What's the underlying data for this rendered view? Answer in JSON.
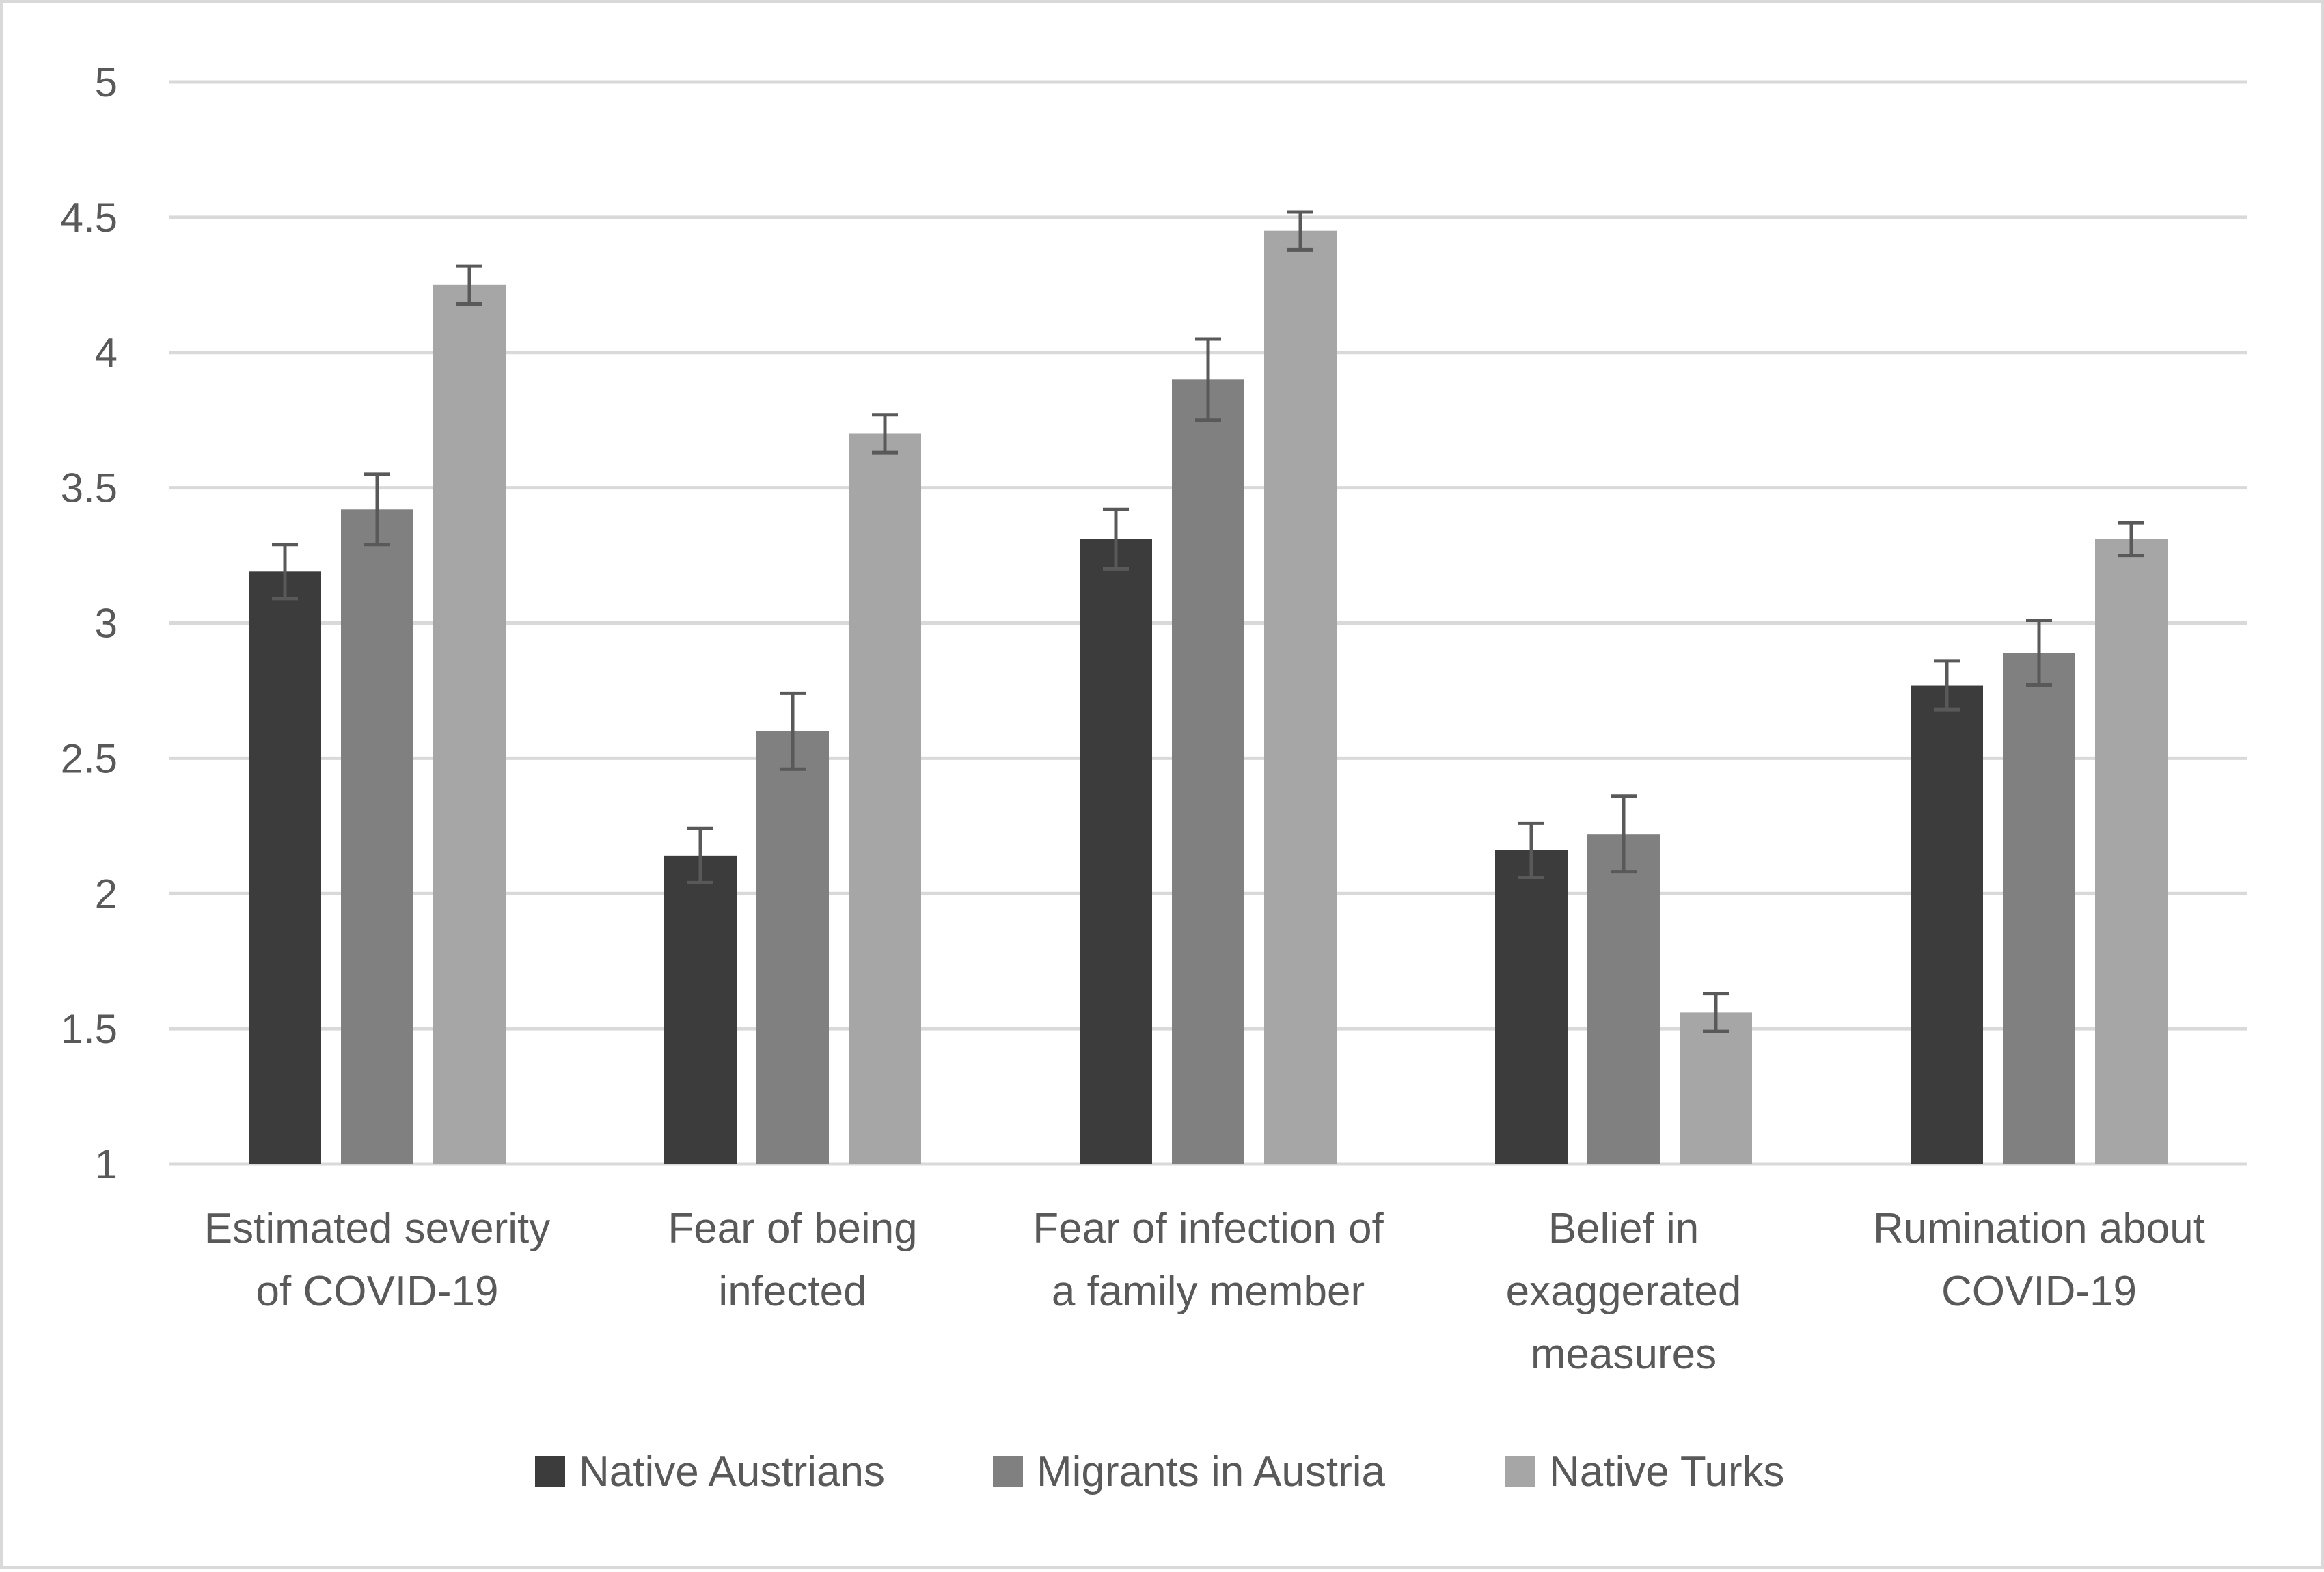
{
  "chart_data": {
    "type": "bar",
    "title": "",
    "xlabel": "",
    "ylabel": "",
    "ylim": [
      1,
      5
    ],
    "yticks": [
      "1",
      "1.5",
      "2",
      "2.5",
      "3",
      "3.5",
      "4",
      "4.5",
      "5"
    ],
    "grid": true,
    "legend_position": "bottom",
    "categories": [
      [
        "Estimated severity",
        "of COVID-19"
      ],
      [
        "Fear of being",
        "infected"
      ],
      [
        "Fear of infection of",
        "a family member"
      ],
      [
        "Belief in",
        "exaggerated",
        "measures"
      ],
      [
        "Rumination about",
        "COVID-19"
      ]
    ],
    "series": [
      {
        "name": "Native Austrians",
        "color": "#3c3c3c",
        "values": [
          3.19,
          2.14,
          3.31,
          2.16,
          2.77
        ],
        "error": [
          0.1,
          0.1,
          0.11,
          0.1,
          0.09
        ]
      },
      {
        "name": "Migrants in Austria",
        "color": "#808080",
        "values": [
          3.42,
          2.6,
          3.9,
          2.22,
          2.89
        ],
        "error": [
          0.13,
          0.14,
          0.15,
          0.14,
          0.12
        ]
      },
      {
        "name": "Native Turks",
        "color": "#a6a6a6",
        "values": [
          4.25,
          3.7,
          4.45,
          1.56,
          3.31
        ],
        "error": [
          0.07,
          0.07,
          0.07,
          0.07,
          0.06
        ]
      }
    ],
    "error_bar_color": "#595959"
  }
}
